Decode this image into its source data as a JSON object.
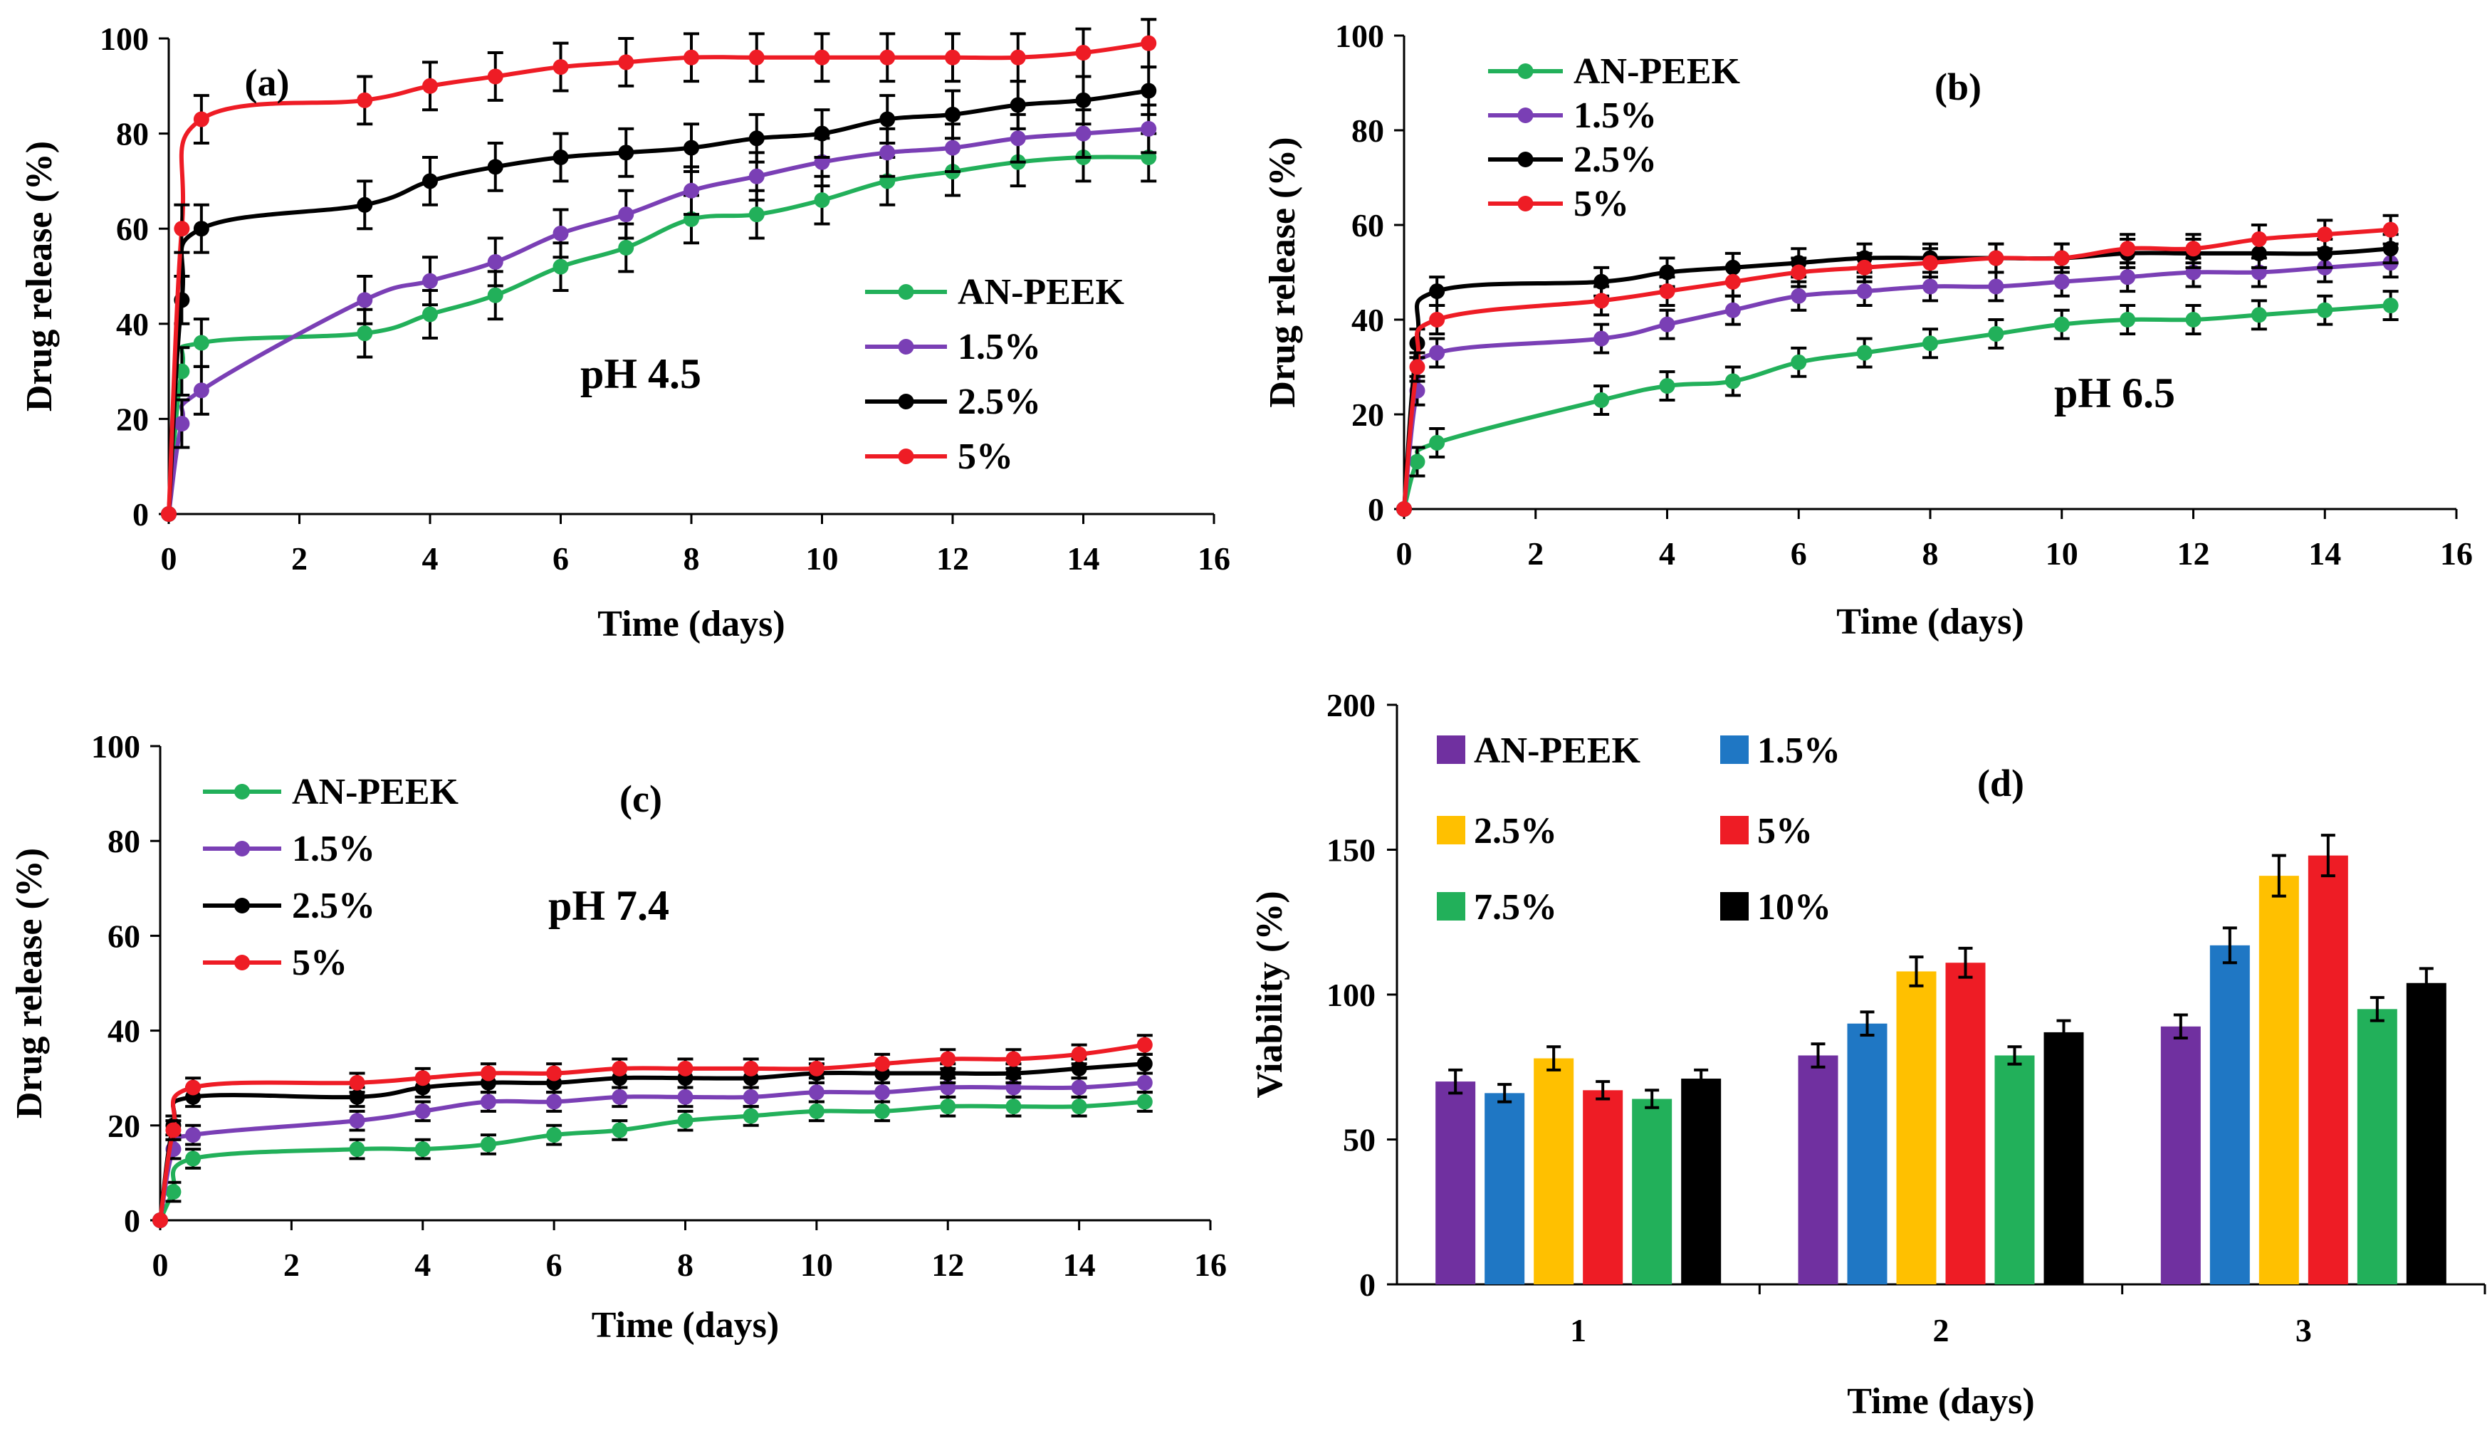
{
  "chart_data": [
    {
      "type": "line",
      "panel_label": "(a)",
      "annotation": "pH 4.5",
      "xlabel": "Time (days)",
      "ylabel": "Drug release (%)",
      "xlim": [
        0,
        16
      ],
      "ylim": [
        0,
        100
      ],
      "xticks": [
        "0",
        "2",
        "4",
        "6",
        "8",
        "10",
        "12",
        "14",
        "16"
      ],
      "yticks": [
        "0",
        "20",
        "40",
        "60",
        "80",
        "100"
      ],
      "legend_position": "center-right",
      "x": [
        0,
        0.2,
        0.5,
        3,
        4,
        5,
        6,
        7,
        8,
        9,
        10,
        11,
        12,
        13,
        14,
        15
      ],
      "series": [
        {
          "name": "AN-PEEK",
          "color": "#22b05a",
          "values": [
            0,
            30,
            36,
            38,
            42,
            46,
            52,
            56,
            62,
            63,
            66,
            70,
            72,
            74,
            75,
            75
          ],
          "error": 5
        },
        {
          "name": "1.5%",
          "color": "#7a3fb5",
          "values": [
            0,
            19,
            26,
            45,
            49,
            53,
            59,
            63,
            68,
            71,
            74,
            76,
            77,
            79,
            80,
            81
          ],
          "error": 5
        },
        {
          "name": "2.5%",
          "color": "#000000",
          "values": [
            0,
            45,
            60,
            65,
            70,
            73,
            75,
            76,
            77,
            79,
            80,
            83,
            84,
            86,
            87,
            89
          ],
          "error": 5
        },
        {
          "name": "5%",
          "color": "#ee1c25",
          "values": [
            0,
            60,
            83,
            87,
            90,
            92,
            94,
            95,
            96,
            96,
            96,
            96,
            96,
            96,
            97,
            99
          ],
          "error": 5
        }
      ]
    },
    {
      "type": "line",
      "panel_label": "(b)",
      "annotation": "pH 6.5",
      "xlabel": "Time (days)",
      "ylabel": "Drug release (%)",
      "xlim": [
        0,
        16
      ],
      "ylim": [
        0,
        100
      ],
      "xticks": [
        "0",
        "2",
        "4",
        "6",
        "8",
        "10",
        "12",
        "14",
        "16"
      ],
      "yticks": [
        "0",
        "20",
        "40",
        "60",
        "80",
        "100"
      ],
      "legend_position": "top-left",
      "x": [
        0,
        0.2,
        0.5,
        3,
        4,
        5,
        6,
        7,
        8,
        9,
        10,
        11,
        12,
        13,
        14,
        15
      ],
      "series": [
        {
          "name": "AN-PEEK",
          "color": "#22b05a",
          "values": [
            0,
            10,
            14,
            23,
            26,
            27,
            31,
            33,
            35,
            37,
            39,
            40,
            40,
            41,
            42,
            43
          ],
          "error": 3
        },
        {
          "name": "1.5%",
          "color": "#7a3fb5",
          "values": [
            0,
            25,
            33,
            36,
            39,
            42,
            45,
            46,
            47,
            47,
            48,
            49,
            50,
            50,
            51,
            52
          ],
          "error": 3
        },
        {
          "name": "2.5%",
          "color": "#000000",
          "values": [
            0,
            35,
            46,
            48,
            50,
            51,
            52,
            53,
            53,
            53,
            53,
            54,
            54,
            54,
            54,
            55
          ],
          "error": 3
        },
        {
          "name": "5%",
          "color": "#ee1c25",
          "values": [
            0,
            30,
            40,
            44,
            46,
            48,
            50,
            51,
            52,
            53,
            53,
            55,
            55,
            57,
            58,
            59
          ],
          "error": 3
        }
      ]
    },
    {
      "type": "line",
      "panel_label": "(c)",
      "annotation": "pH 7.4",
      "xlabel": "Time (days)",
      "ylabel": "Drug release (%)",
      "xlim": [
        0,
        16
      ],
      "ylim": [
        0,
        100
      ],
      "xticks": [
        "0",
        "2",
        "4",
        "6",
        "8",
        "10",
        "12",
        "14",
        "16"
      ],
      "yticks": [
        "0",
        "20",
        "40",
        "60",
        "80",
        "100"
      ],
      "legend_position": "top-left",
      "x": [
        0,
        0.2,
        0.5,
        3,
        4,
        5,
        6,
        7,
        8,
        9,
        10,
        11,
        12,
        13,
        14,
        15
      ],
      "series": [
        {
          "name": "AN-PEEK",
          "color": "#22b05a",
          "values": [
            0,
            6,
            13,
            15,
            15,
            16,
            18,
            19,
            21,
            22,
            23,
            23,
            24,
            24,
            24,
            25
          ],
          "error": 2
        },
        {
          "name": "1.5%",
          "color": "#7a3fb5",
          "values": [
            0,
            15,
            18,
            21,
            23,
            25,
            25,
            26,
            26,
            26,
            27,
            27,
            28,
            28,
            28,
            29
          ],
          "error": 2
        },
        {
          "name": "2.5%",
          "color": "#000000",
          "values": [
            0,
            20,
            26,
            26,
            28,
            29,
            29,
            30,
            30,
            30,
            31,
            31,
            31,
            31,
            32,
            33
          ],
          "error": 2
        },
        {
          "name": "5%",
          "color": "#ee1c25",
          "values": [
            0,
            19,
            28,
            29,
            30,
            31,
            31,
            32,
            32,
            32,
            32,
            33,
            34,
            34,
            35,
            37
          ],
          "error": 2
        }
      ]
    },
    {
      "type": "bar",
      "panel_label": "(d)",
      "xlabel": "Time (days)",
      "ylabel": "Viability  (%)",
      "ylim": [
        0,
        200
      ],
      "yticks": [
        "0",
        "50",
        "100",
        "150",
        "200"
      ],
      "categories": [
        "1",
        "2",
        "3"
      ],
      "legend_position": "top",
      "series": [
        {
          "name": "AN-PEEK",
          "color": "#7030a0",
          "values": [
            70,
            79,
            89
          ],
          "errors": [
            4,
            4,
            4
          ]
        },
        {
          "name": "1.5%",
          "color": "#1f77c4",
          "values": [
            66,
            90,
            117
          ],
          "errors": [
            3,
            4,
            6
          ]
        },
        {
          "name": "2.5%",
          "color": "#ffc000",
          "values": [
            78,
            108,
            141
          ],
          "errors": [
            4,
            5,
            7
          ]
        },
        {
          "name": "5%",
          "color": "#ee1c25",
          "values": [
            67,
            111,
            148
          ],
          "errors": [
            3,
            5,
            7
          ]
        },
        {
          "name": "7.5%",
          "color": "#22b05a",
          "values": [
            64,
            79,
            95
          ],
          "errors": [
            3,
            3,
            4
          ]
        },
        {
          "name": "10%",
          "color": "#000000",
          "values": [
            71,
            87,
            104
          ],
          "errors": [
            3,
            4,
            5
          ]
        }
      ]
    }
  ]
}
